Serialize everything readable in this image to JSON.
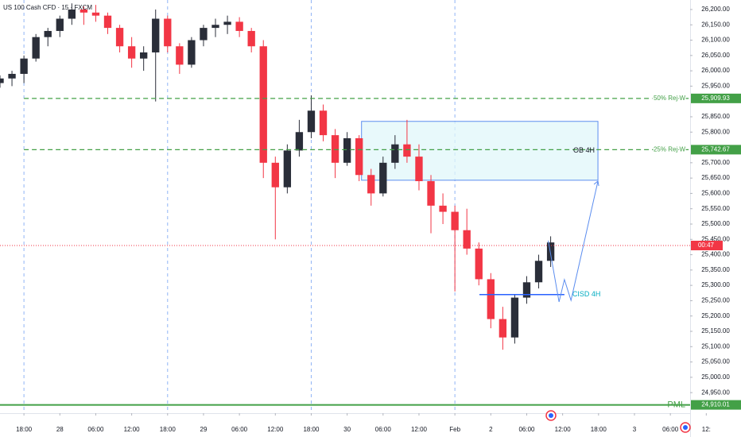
{
  "header": {
    "title": "US 100 Cash CFD · 15 · FXCM"
  },
  "chart_data": {
    "type": "candlestick",
    "x": [
      -4,
      -2,
      0,
      2,
      4,
      6,
      8,
      10,
      12,
      14,
      16,
      18,
      20,
      22,
      24,
      26,
      28,
      30,
      32,
      34,
      36,
      38,
      40,
      42,
      44,
      46,
      48,
      50,
      52,
      54,
      56,
      58,
      60,
      62,
      64,
      66,
      68,
      70,
      72,
      74,
      76,
      78,
      80,
      82,
      84,
      86,
      88
    ],
    "open": [
      25960,
      25975,
      25990,
      26040,
      26110,
      26130,
      26170,
      26200,
      26190,
      26180,
      26140,
      26080,
      26040,
      26060,
      26170,
      26080,
      26020,
      26100,
      26140,
      26150,
      26160,
      26130,
      26080,
      25700,
      25620,
      25740,
      25800,
      25870,
      25790,
      25700,
      25780,
      25660,
      25600,
      25700,
      25760,
      25720,
      25640,
      25560,
      25540,
      25480,
      25420,
      25320,
      25190,
      25130,
      25260,
      25310,
      25380
    ],
    "high": [
      25985,
      26000,
      26050,
      26120,
      26140,
      26180,
      26220,
      26210,
      26215,
      26190,
      26150,
      26110,
      26080,
      26200,
      26180,
      26090,
      26110,
      26150,
      26170,
      26180,
      26175,
      26140,
      26100,
      25720,
      25760,
      25840,
      25920,
      25890,
      25810,
      25800,
      25790,
      25680,
      25720,
      25790,
      25840,
      25760,
      25660,
      25600,
      25560,
      25550,
      25440,
      25340,
      25230,
      25270,
      25330,
      25400,
      25460
    ],
    "low": [
      25945,
      25950,
      25960,
      26030,
      26080,
      26110,
      26150,
      26150,
      26160,
      26120,
      26060,
      26010,
      26000,
      25900,
      26060,
      25990,
      26010,
      26080,
      26110,
      26120,
      26110,
      26060,
      25650,
      25450,
      25600,
      25720,
      25780,
      25770,
      25650,
      25690,
      25640,
      25560,
      25590,
      25680,
      25700,
      25610,
      25470,
      25500,
      25280,
      25400,
      25300,
      25160,
      25090,
      25110,
      25240,
      25290,
      25360
    ],
    "close": [
      25975,
      25990,
      26040,
      26110,
      26130,
      26170,
      26200,
      26190,
      26180,
      26140,
      26080,
      26040,
      26060,
      26170,
      26080,
      26020,
      26100,
      26140,
      26150,
      26160,
      26130,
      26080,
      25700,
      25620,
      25740,
      25800,
      25870,
      25790,
      25700,
      25780,
      25660,
      25600,
      25700,
      25760,
      25720,
      25640,
      25560,
      25540,
      25480,
      25420,
      25320,
      25190,
      25130,
      25260,
      25310,
      25380,
      25440
    ],
    "up_color": "#2a2e39",
    "down_color": "#f23645",
    "xlim": [
      -4,
      111.3
    ],
    "ylim": [
      24883,
      26231
    ],
    "xticks": [
      {
        "value": 0,
        "label": "18:00"
      },
      {
        "value": 6,
        "label": "28"
      },
      {
        "value": 12,
        "label": "06:00"
      },
      {
        "value": 18,
        "label": "12:00"
      },
      {
        "value": 24,
        "label": "18:00"
      },
      {
        "value": 30,
        "label": "29"
      },
      {
        "value": 36,
        "label": "06:00"
      },
      {
        "value": 42,
        "label": "12:00"
      },
      {
        "value": 48,
        "label": "18:00"
      },
      {
        "value": 54,
        "label": "30"
      },
      {
        "value": 60,
        "label": "06:00"
      },
      {
        "value": 66,
        "label": "12:00"
      },
      {
        "value": 72,
        "label": "Feb"
      },
      {
        "value": 78,
        "label": "2"
      },
      {
        "value": 84,
        "label": "06:00"
      },
      {
        "value": 90,
        "label": "12:00"
      },
      {
        "value": 96,
        "label": "18:00"
      },
      {
        "value": 102,
        "label": "3"
      },
      {
        "value": 108,
        "label": "06:00"
      },
      {
        "value": 114,
        "label": "12:"
      }
    ],
    "yticks": [
      {
        "value": 26200,
        "label": "26,200.00"
      },
      {
        "value": 26150,
        "label": "26,150.00"
      },
      {
        "value": 26100,
        "label": "26,100.00"
      },
      {
        "value": 26050,
        "label": "26,050.00"
      },
      {
        "value": 26000,
        "label": "26,000.00"
      },
      {
        "value": 25950,
        "label": "25,950.00"
      },
      {
        "value": 25850,
        "label": "25,850.00"
      },
      {
        "value": 25800,
        "label": "25,800.00"
      },
      {
        "value": 25700,
        "label": "25,700.00"
      },
      {
        "value": 25650,
        "label": "25,650.00"
      },
      {
        "value": 25600,
        "label": "25,600.00"
      },
      {
        "value": 25550,
        "label": "25,550.00"
      },
      {
        "value": 25500,
        "label": "25,500.00"
      },
      {
        "value": 25450,
        "label": "25,450.00"
      },
      {
        "value": 25400,
        "label": "25,400.00"
      },
      {
        "value": 25350,
        "label": "25,350.00"
      },
      {
        "value": 25300,
        "label": "25,300.00"
      },
      {
        "value": 25250,
        "label": "25,250.00"
      },
      {
        "value": 25200,
        "label": "25,200.00"
      },
      {
        "value": 25150,
        "label": "25,150.00"
      },
      {
        "value": 25100,
        "label": "25,100.00"
      },
      {
        "value": 25050,
        "label": "25,050.00"
      },
      {
        "value": 25000,
        "label": "25,000.00"
      },
      {
        "value": 24950,
        "label": "24,950.00"
      }
    ],
    "session_lines": [
      0,
      24,
      48,
      72
    ],
    "levels": [
      {
        "name": "50% Rej W",
        "value": 25909.93,
        "label": "25,909.93",
        "color": "#43a047",
        "style": "dashed"
      },
      {
        "name": "25% Rej W",
        "value": 25742.67,
        "label": "25,742.67",
        "color": "#43a047",
        "style": "dashed"
      },
      {
        "name": "PML",
        "value": 24910.01,
        "label": "24,910.01",
        "color": "#43a047",
        "style": "solid"
      }
    ],
    "last_price": {
      "value": 25430,
      "label": "00:47",
      "color": "#f23645"
    },
    "zones": [
      {
        "name": "OB 4H",
        "x": [
          56.4,
          95.9
        ],
        "y": [
          25643,
          25835
        ],
        "color": "#5b8def"
      }
    ],
    "cisd": {
      "name": "CISD 4H",
      "value": 25270,
      "x": [
        76.1,
        90.3
      ],
      "color": "#2962ff"
    },
    "projection": {
      "x": [
        87.6,
        89.4,
        90.3,
        91.4,
        95.9
      ],
      "y": [
        25446,
        25246,
        25319,
        25251,
        25640
      ],
      "color": "#5b8def"
    }
  }
}
